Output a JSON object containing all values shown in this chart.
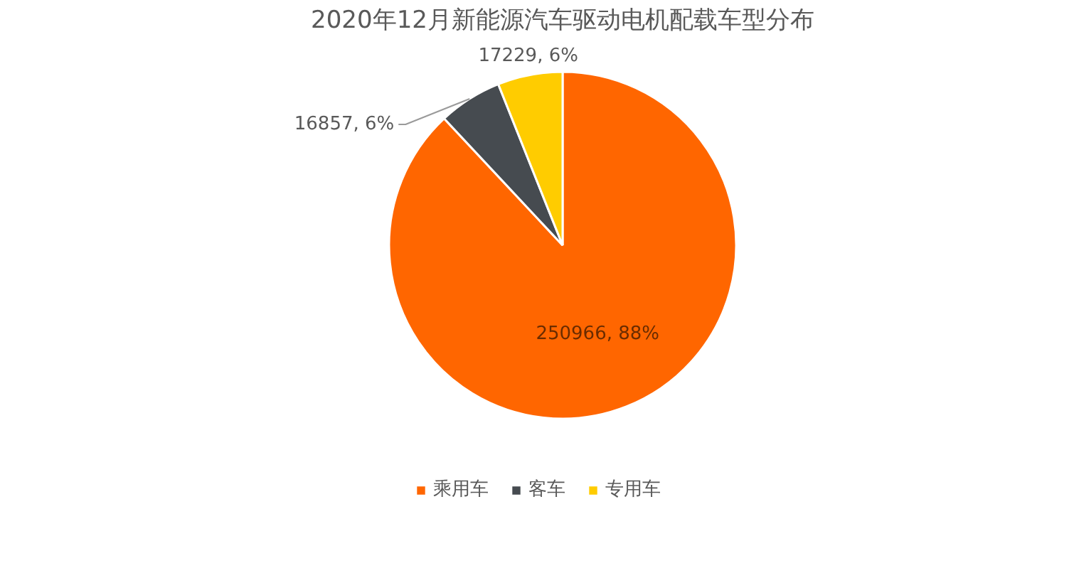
{
  "chart_data": {
    "type": "pie",
    "title": "2020年12月新能源汽车驱动电机配载车型分布",
    "categories": [
      "乘用车",
      "客车",
      "专用车"
    ],
    "values": [
      250966,
      16857,
      17229
    ],
    "colors": [
      "#ff6600",
      "#464b50",
      "#ffcc00"
    ],
    "value_labels": [
      "250966, 88%",
      "16857, 6%",
      "17229, 6%"
    ],
    "legend": "bottom"
  }
}
